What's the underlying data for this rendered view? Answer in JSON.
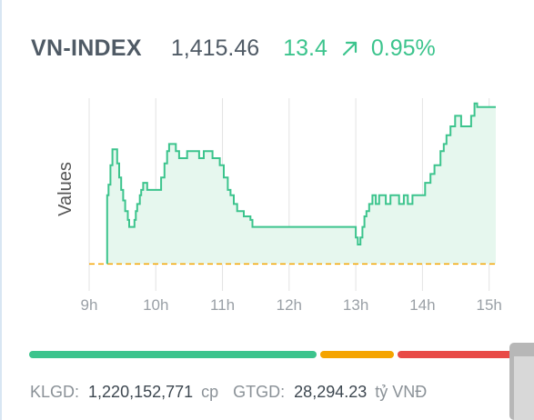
{
  "header": {
    "name": "VN-INDEX",
    "value": "1,415.46",
    "change": "13.4",
    "percent": "0.95%",
    "direction_icon": "arrow-up-right-icon",
    "color_up": "#3cc48d"
  },
  "chart_data": {
    "type": "area",
    "ylabel": "Values",
    "x_ticks": [
      "9h",
      "10h",
      "11h",
      "12h",
      "13h",
      "14h",
      "15h"
    ],
    "xlim": [
      9,
      15.1
    ],
    "ylim": [
      0,
      100
    ],
    "reference_value": 6,
    "reference_color": "#f5a400",
    "line_color": "#3cc48d",
    "fill_color": "#e6f7ee",
    "series": [
      {
        "points": [
          [
            9.27,
            6
          ],
          [
            9.27,
            45
          ],
          [
            9.29,
            51
          ],
          [
            9.32,
            62
          ],
          [
            9.35,
            71
          ],
          [
            9.38,
            71
          ],
          [
            9.42,
            63
          ],
          [
            9.45,
            55
          ],
          [
            9.48,
            48
          ],
          [
            9.51,
            42
          ],
          [
            9.54,
            36
          ],
          [
            9.58,
            31
          ],
          [
            9.6,
            27
          ],
          [
            9.63,
            27
          ],
          [
            9.68,
            31
          ],
          [
            9.7,
            36
          ],
          [
            9.72,
            40
          ],
          [
            9.76,
            45
          ],
          [
            9.78,
            48
          ],
          [
            9.81,
            52
          ],
          [
            9.84,
            52
          ],
          [
            9.87,
            48
          ],
          [
            9.9,
            48
          ],
          [
            9.95,
            48
          ],
          [
            10.0,
            48
          ],
          [
            10.03,
            48
          ],
          [
            10.08,
            55
          ],
          [
            10.13,
            63
          ],
          [
            10.17,
            70
          ],
          [
            10.2,
            74
          ],
          [
            10.25,
            74
          ],
          [
            10.3,
            70
          ],
          [
            10.35,
            66
          ],
          [
            10.4,
            66
          ],
          [
            10.47,
            70
          ],
          [
            10.52,
            70
          ],
          [
            10.58,
            70
          ],
          [
            10.65,
            66
          ],
          [
            10.72,
            70
          ],
          [
            10.78,
            70
          ],
          [
            10.85,
            66
          ],
          [
            10.92,
            66
          ],
          [
            10.96,
            62
          ],
          [
            11.02,
            55
          ],
          [
            11.08,
            48
          ],
          [
            11.12,
            45
          ],
          [
            11.17,
            40
          ],
          [
            11.22,
            36
          ],
          [
            11.28,
            36
          ],
          [
            11.32,
            33
          ],
          [
            11.42,
            31
          ],
          [
            11.45,
            27
          ],
          [
            11.48,
            27
          ],
          [
            11.55,
            27
          ],
          [
            12.0,
            27
          ],
          [
            12.5,
            27
          ],
          [
            13.0,
            27
          ],
          [
            13.0,
            21
          ],
          [
            13.03,
            17
          ],
          [
            13.07,
            21
          ],
          [
            13.1,
            27
          ],
          [
            13.13,
            33
          ],
          [
            13.16,
            36
          ],
          [
            13.2,
            40
          ],
          [
            13.25,
            45
          ],
          [
            13.3,
            40
          ],
          [
            13.35,
            45
          ],
          [
            13.4,
            45
          ],
          [
            13.45,
            40
          ],
          [
            13.52,
            45
          ],
          [
            13.58,
            45
          ],
          [
            13.65,
            40
          ],
          [
            13.72,
            45
          ],
          [
            13.78,
            40
          ],
          [
            13.85,
            45
          ],
          [
            13.92,
            45
          ],
          [
            14.0,
            45
          ],
          [
            14.04,
            52
          ],
          [
            14.08,
            52
          ],
          [
            14.12,
            57
          ],
          [
            14.18,
            62
          ],
          [
            14.22,
            62
          ],
          [
            14.27,
            70
          ],
          [
            14.32,
            74
          ],
          [
            14.36,
            79
          ],
          [
            14.42,
            84
          ],
          [
            14.45,
            84
          ],
          [
            14.49,
            90
          ],
          [
            14.54,
            90
          ],
          [
            14.58,
            84
          ],
          [
            14.62,
            84
          ],
          [
            14.69,
            84
          ],
          [
            14.73,
            90
          ],
          [
            14.78,
            97
          ],
          [
            14.8,
            97
          ],
          [
            14.82,
            95
          ],
          [
            15.0,
            95
          ],
          [
            15.1,
            95
          ]
        ]
      }
    ]
  },
  "volume_bar": [
    {
      "fraction": 0.593,
      "color": "#3cc48d"
    },
    {
      "fraction": 0.151,
      "color": "#f5a400"
    },
    {
      "fraction": 0.242,
      "color": "#e84a47"
    }
  ],
  "footer": {
    "klgd_label": "KLGD:",
    "klgd_value": "1,220,152,771",
    "klgd_unit": "cp",
    "gtgd_label": "GTGD:",
    "gtgd_value": "28,294.23",
    "gtgd_unit": "tỷ VNĐ"
  }
}
